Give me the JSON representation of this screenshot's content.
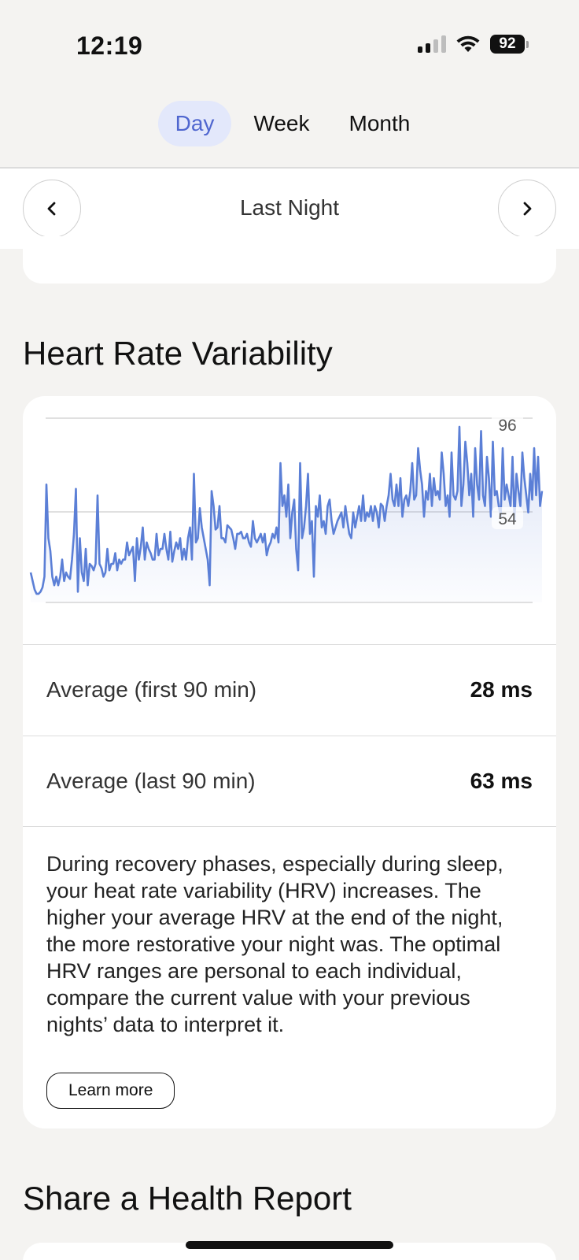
{
  "status_bar": {
    "time": "12:19",
    "battery": "92"
  },
  "tabs": [
    {
      "label": "Day",
      "active": true
    },
    {
      "label": "Week",
      "active": false
    },
    {
      "label": "Month",
      "active": false
    }
  ],
  "nav": {
    "title": "Last Night",
    "prev_icon": "chevron-left-icon",
    "next_icon": "chevron-right-icon"
  },
  "hrv": {
    "title": "Heart Rate Variability",
    "rows": [
      {
        "label": "Average (first 90 min)",
        "value": "28 ms"
      },
      {
        "label": "Average (last 90 min)",
        "value": "63 ms"
      }
    ],
    "description": "During recovery phases, especially during sleep, your heat rate variability (HRV) increases. The higher your average HRV at the end of the night, the more restorative your night was. The optimal HRV ranges are personal to each individual, compare the current value with your previous nights’ data to interpret it.",
    "learn_more": "Learn more"
  },
  "share": {
    "title": "Share a Health Report"
  },
  "colors": {
    "accent": "#4f66cf",
    "line": "#5b7fd6",
    "active_tab_bg": "#e3e8fb"
  },
  "chart_data": {
    "type": "line",
    "title": "",
    "ylim": [
      10,
      96
    ],
    "reference_labels": [
      96,
      54
    ],
    "series": [
      {
        "values": [
          24,
          20,
          16,
          14,
          14,
          15,
          17,
          22,
          65,
          40,
          34,
          22,
          18,
          22,
          18,
          22,
          30,
          20,
          24,
          22,
          21,
          30,
          42,
          63,
          15,
          40,
          24,
          20,
          35,
          18,
          28,
          27,
          25,
          28,
          60,
          28,
          26,
          22,
          24,
          35,
          25,
          28,
          28,
          33,
          25,
          30,
          28,
          30,
          30,
          38,
          32,
          34,
          36,
          20,
          40,
          30,
          36,
          45,
          30,
          38,
          35,
          33,
          30,
          30,
          42,
          32,
          35,
          35,
          42,
          35,
          30,
          43,
          29,
          34,
          38,
          35,
          40,
          30,
          35,
          30,
          40,
          45,
          30,
          70,
          38,
          40,
          54,
          45,
          40,
          35,
          30,
          18,
          62,
          55,
          44,
          45,
          55,
          40,
          40,
          38,
          46,
          45,
          44,
          40,
          35,
          42,
          42,
          43,
          40,
          40,
          42,
          38,
          36,
          48,
          40,
          38,
          40,
          42,
          38,
          42,
          32,
          36,
          38,
          42,
          40,
          45,
          38,
          75,
          55,
          60,
          50,
          65,
          40,
          52,
          58,
          35,
          25,
          75,
          40,
          45,
          55,
          70,
          42,
          48,
          22,
          55,
          50,
          60,
          45,
          48,
          42,
          55,
          58,
          48,
          42,
          45,
          48,
          50,
          52,
          45,
          55,
          48,
          42,
          40,
          52,
          45,
          50,
          55,
          48,
          60,
          48,
          52,
          50,
          55,
          48,
          55,
          52,
          45,
          56,
          55,
          48,
          55,
          60,
          70,
          58,
          55,
          65,
          55,
          68,
          50,
          58,
          60,
          55,
          62,
          75,
          58,
          60,
          82,
          72,
          65,
          50,
          62,
          58,
          70,
          55,
          68,
          60,
          62,
          58,
          80,
          70,
          55,
          60,
          50,
          80,
          60,
          58,
          62,
          92,
          55,
          65,
          85,
          75,
          60,
          70,
          50,
          82,
          65,
          58,
          90,
          60,
          55,
          78,
          68,
          50,
          85,
          60,
          62,
          55,
          50,
          82,
          58,
          65,
          60,
          55,
          78,
          48,
          70,
          62,
          55,
          80,
          68,
          60,
          52,
          70,
          58,
          82,
          60,
          78,
          55,
          62
        ]
      }
    ]
  }
}
